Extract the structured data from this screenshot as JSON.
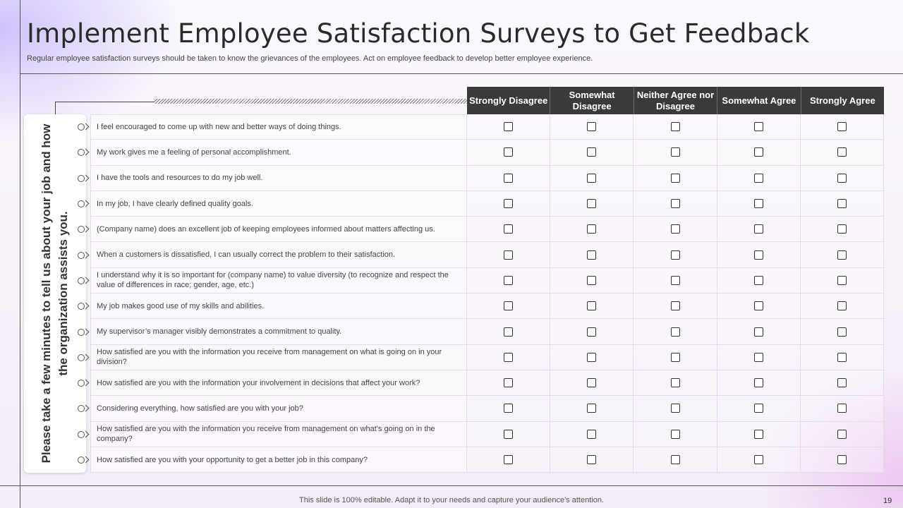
{
  "title": "Implement Employee Satisfaction Surveys to Get Feedback",
  "subtitle": "Regular employee satisfaction surveys should be taken to know the grievances of the employees. Act on employee feedback to develop better employee experience.",
  "side_prompt": "Please take a few minutes to tell us about your job and how the organization assists you.",
  "columns": [
    "Strongly Disagree",
    "Somewhat Disagree",
    "Neither Agree nor Disagree",
    "Somewhat Agree",
    "Strongly Agree"
  ],
  "questions": [
    "I feel encouraged to come up with new and better ways of doing things.",
    "My work gives me a feeling of personal accomplishment.",
    "I have the tools and resources to do my job well.",
    "In my job, I have clearly defined quality goals.",
    "(Company name) does an excellent job of keeping employees informed about matters affecting us.",
    "When a customers is dissatisfied, I can usually correct the problem to their satisfaction.",
    "I understand why it is so important for (company name) to value diversity (to recognize and respect the value of differences in race; gender, age, etc.)",
    "My job makes good use of my skills and abilities.",
    "My supervisor’s manager visibly demonstrates a commitment to quality.",
    "How satisfied are you with the information you receive from management on what is going on in your division?",
    "How satisfied are you with the information your involvement in decisions that affect your work?",
    "Considering everything, how satisfied are you with your job?",
    "How satisfied are you with the information you receive from management on what's going on in the company?",
    "How satisfied are you with your opportunity to get a better job in this company?"
  ],
  "footer": "This slide is 100% editable. Adapt it to your needs and capture your audience's attention.",
  "page_number": "19"
}
